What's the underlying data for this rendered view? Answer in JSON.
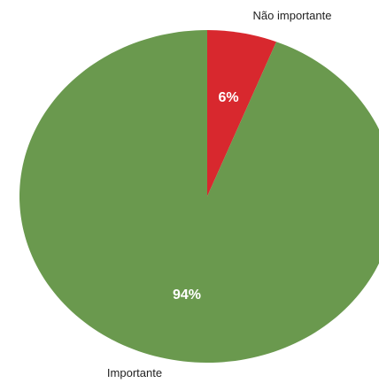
{
  "chart_data": {
    "type": "pie",
    "slices": [
      {
        "label": "Não importante",
        "value": 6,
        "value_label": "6%",
        "color": "#d8282e"
      },
      {
        "label": "Importante",
        "value": 94,
        "value_label": "94%",
        "color": "#6a994e"
      }
    ]
  }
}
